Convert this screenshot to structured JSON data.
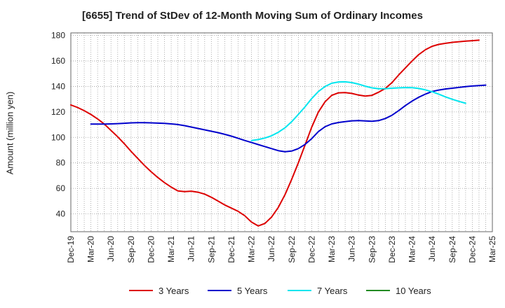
{
  "chart_data": {
    "type": "line",
    "title": "[6655]  Trend of StDev of 12-Month Moving Sum of Ordinary Incomes",
    "xlabel": "",
    "ylabel": "Amount (million yen)",
    "ylim": [
      26,
      182
    ],
    "yticks": [
      40,
      60,
      80,
      100,
      120,
      140,
      160,
      180
    ],
    "x_tick_labels": [
      "Dec-19",
      "Mar-20",
      "Jun-20",
      "Sep-20",
      "Dec-20",
      "Mar-21",
      "Jun-21",
      "Sep-21",
      "Dec-21",
      "Mar-22",
      "Jun-22",
      "Sep-22",
      "Dec-22",
      "Mar-23",
      "Jun-23",
      "Sep-23",
      "Dec-23",
      "Mar-24",
      "Jun-24",
      "Sep-24",
      "Dec-24",
      "Mar-25"
    ],
    "grid": true,
    "legend_position": "bottom",
    "series": [
      {
        "name": "3 Years",
        "color": "#dd0000",
        "start_index": 0,
        "values": [
          125.5,
          123.5,
          121,
          118,
          114.5,
          110.5,
          105.5,
          100.5,
          95,
          89,
          83.5,
          78,
          73,
          68.5,
          64.5,
          61,
          58,
          57.5,
          57.8,
          57,
          55.5,
          53,
          50,
          47,
          44.5,
          42,
          38.5,
          33.5,
          30.5,
          32.5,
          37.5,
          45,
          55,
          67,
          80,
          94,
          108,
          120,
          128,
          133,
          135,
          135.2,
          134.5,
          133.2,
          132.4,
          133,
          135.5,
          138.5,
          143,
          149,
          154.5,
          160,
          165,
          168.8,
          171.5,
          173,
          173.8,
          174.6,
          175.1,
          175.5,
          175.9,
          176.3
        ]
      },
      {
        "name": "5 Years",
        "color": "#0000cc",
        "start_index": 3,
        "values": [
          110.5,
          110.5,
          110.5,
          110.6,
          110.8,
          111.1,
          111.4,
          111.5,
          111.5,
          111.4,
          111.2,
          111,
          110.6,
          110.1,
          109.2,
          108.1,
          107,
          105.9,
          104.8,
          103.7,
          102.4,
          101,
          99.3,
          97.6,
          96,
          94.4,
          92.8,
          91.2,
          89.6,
          88.8,
          89.3,
          91.2,
          94.5,
          99,
          104.6,
          108.4,
          110.6,
          111.7,
          112.4,
          113,
          113.2,
          112.9,
          112.7,
          113.2,
          114.8,
          117.4,
          121,
          125,
          128.5,
          131.5,
          134,
          136,
          137.2,
          138,
          138.6,
          139.2,
          139.8,
          140.3,
          140.7,
          141
        ]
      },
      {
        "name": "7 Years",
        "color": "#00e5ee",
        "start_index": 27,
        "values": [
          97.5,
          98.3,
          99.5,
          101.3,
          104,
          107.5,
          112.3,
          118,
          124,
          130.5,
          136,
          140,
          142.5,
          143.5,
          143.6,
          143,
          141.8,
          140.2,
          138.9,
          138.2,
          138.3,
          138.6,
          138.9,
          139.1,
          139,
          138.4,
          137.3,
          135.8,
          133.9,
          131.8,
          129.9,
          128.3,
          126.8
        ]
      },
      {
        "name": "10 Years",
        "color": "#228b22",
        "start_index": 0,
        "values": []
      }
    ]
  }
}
